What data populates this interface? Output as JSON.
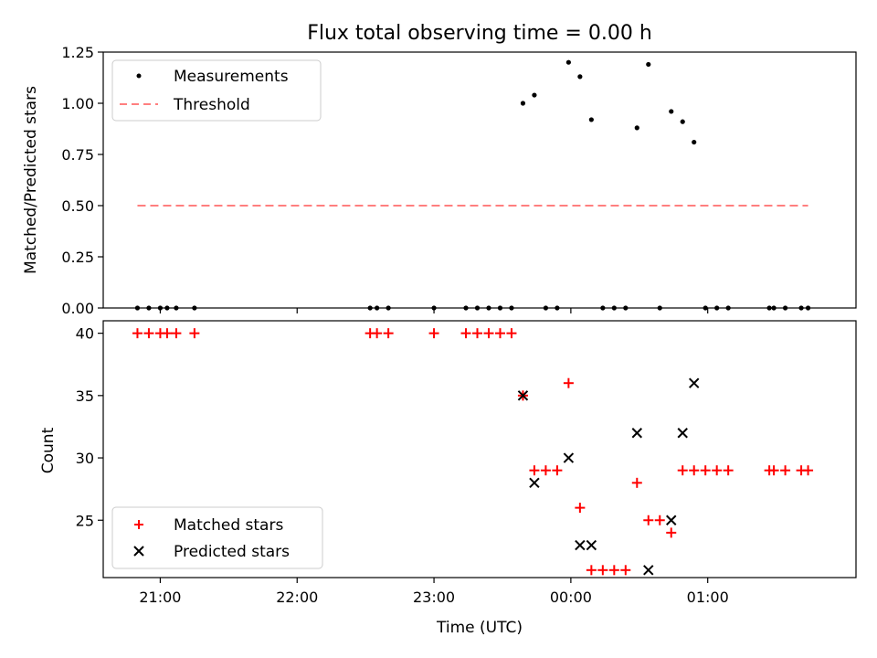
{
  "chart_data": [
    {
      "type": "scatter",
      "title": "Flux total observing time = 0.00 h",
      "xlabel": "",
      "ylabel": "Matched/Predicted stars",
      "x_axis_type": "time",
      "xlim": [
        "20:35",
        "02:05"
      ],
      "ylim": [
        0,
        1.25
      ],
      "yticks": [
        "0.00",
        "0.25",
        "0.50",
        "0.75",
        "1.00",
        "1.25"
      ],
      "legend_location": "upper-left",
      "series": [
        {
          "name": "Measurements",
          "marker": "dot",
          "color": "#000000",
          "points": [
            [
              "20:50",
              0
            ],
            [
              "20:55",
              0
            ],
            [
              "21:00",
              0
            ],
            [
              "21:03",
              0
            ],
            [
              "21:07",
              0
            ],
            [
              "21:15",
              0
            ],
            [
              "22:32",
              0
            ],
            [
              "22:35",
              0
            ],
            [
              "22:40",
              0
            ],
            [
              "23:00",
              0
            ],
            [
              "23:14",
              0
            ],
            [
              "23:19",
              0
            ],
            [
              "23:24",
              0
            ],
            [
              "23:29",
              0
            ],
            [
              "23:34",
              0
            ],
            [
              "23:39",
              1.0
            ],
            [
              "23:44",
              1.04
            ],
            [
              "23:49",
              0
            ],
            [
              "23:54",
              0
            ],
            [
              "23:59",
              1.2
            ],
            [
              "00:04",
              1.13
            ],
            [
              "00:09",
              0.92
            ],
            [
              "00:14",
              0
            ],
            [
              "00:19",
              0
            ],
            [
              "00:24",
              0
            ],
            [
              "00:29",
              0.88
            ],
            [
              "00:34",
              1.19
            ],
            [
              "00:39",
              0
            ],
            [
              "00:44",
              0.96
            ],
            [
              "00:49",
              0.91
            ],
            [
              "00:54",
              0.81
            ],
            [
              "00:59",
              0
            ],
            [
              "01:04",
              0
            ],
            [
              "01:09",
              0
            ],
            [
              "01:27",
              0
            ],
            [
              "01:29",
              0
            ],
            [
              "01:34",
              0
            ],
            [
              "01:41",
              0
            ],
            [
              "01:44",
              0
            ]
          ]
        },
        {
          "name": "Threshold",
          "marker": "dashed-line",
          "color": "#ff7f7f",
          "points": [
            [
              "20:50",
              0.5
            ],
            [
              "01:44",
              0.5
            ]
          ]
        }
      ]
    },
    {
      "type": "scatter",
      "title": "",
      "xlabel": "Time (UTC)",
      "ylabel": "Count",
      "x_axis_type": "time",
      "xlim": [
        "20:35",
        "02:05"
      ],
      "ylim": [
        20.4,
        41
      ],
      "xticks": [
        "21:00",
        "22:00",
        "23:00",
        "00:00",
        "01:00"
      ],
      "yticks": [
        "25",
        "30",
        "35",
        "40"
      ],
      "legend_location": "lower-left",
      "series": [
        {
          "name": "Matched stars",
          "marker": "plus",
          "color": "#ff0000",
          "points": [
            [
              "20:50",
              40
            ],
            [
              "20:55",
              40
            ],
            [
              "21:00",
              40
            ],
            [
              "21:03",
              40
            ],
            [
              "21:07",
              40
            ],
            [
              "21:15",
              40
            ],
            [
              "22:32",
              40
            ],
            [
              "22:35",
              40
            ],
            [
              "22:40",
              40
            ],
            [
              "23:00",
              40
            ],
            [
              "23:14",
              40
            ],
            [
              "23:19",
              40
            ],
            [
              "23:24",
              40
            ],
            [
              "23:29",
              40
            ],
            [
              "23:34",
              40
            ],
            [
              "23:39",
              35
            ],
            [
              "23:44",
              29
            ],
            [
              "23:49",
              29
            ],
            [
              "23:54",
              29
            ],
            [
              "23:59",
              36
            ],
            [
              "00:04",
              26
            ],
            [
              "00:09",
              21
            ],
            [
              "00:14",
              21
            ],
            [
              "00:19",
              21
            ],
            [
              "00:24",
              21
            ],
            [
              "00:29",
              28
            ],
            [
              "00:34",
              25
            ],
            [
              "00:39",
              25
            ],
            [
              "00:44",
              24
            ],
            [
              "00:49",
              29
            ],
            [
              "00:54",
              29
            ],
            [
              "00:59",
              29
            ],
            [
              "01:04",
              29
            ],
            [
              "01:09",
              29
            ],
            [
              "01:27",
              29
            ],
            [
              "01:29",
              29
            ],
            [
              "01:34",
              29
            ],
            [
              "01:41",
              29
            ],
            [
              "01:44",
              29
            ]
          ]
        },
        {
          "name": "Predicted stars",
          "marker": "x",
          "color": "#000000",
          "points": [
            [
              "23:39",
              35
            ],
            [
              "23:44",
              28
            ],
            [
              "23:59",
              30
            ],
            [
              "00:04",
              23
            ],
            [
              "00:09",
              23
            ],
            [
              "00:29",
              32
            ],
            [
              "00:34",
              21
            ],
            [
              "00:44",
              25
            ],
            [
              "00:49",
              32
            ],
            [
              "00:54",
              36
            ]
          ]
        }
      ]
    }
  ]
}
